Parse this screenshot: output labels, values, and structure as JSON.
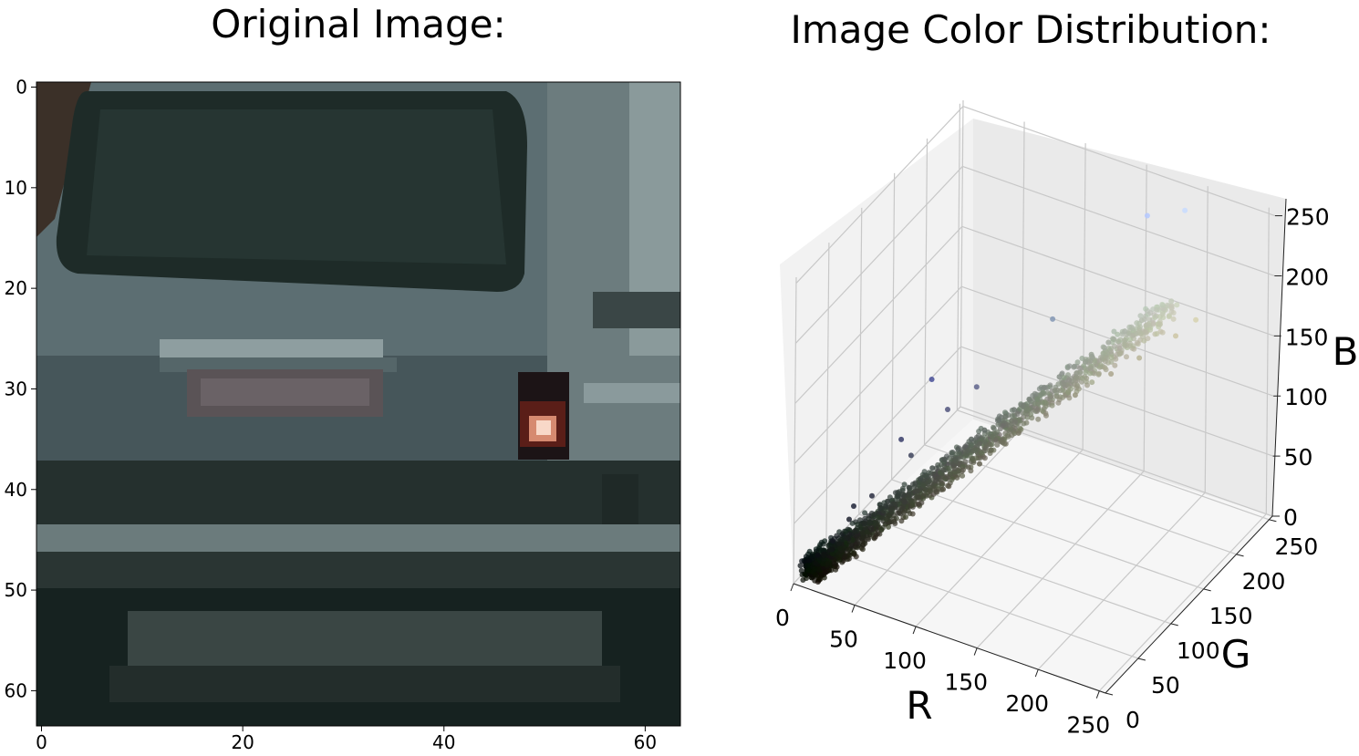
{
  "left_panel": {
    "title": "Original Image:",
    "image_description": "64x64 crop of the rear of a gray car: dark rear window, license plate area, red tail light on the right",
    "x_ticks": [
      "0",
      "20",
      "40",
      "60"
    ],
    "y_ticks": [
      "0",
      "10",
      "20",
      "30",
      "40",
      "50",
      "60"
    ]
  },
  "right_panel": {
    "title": "Image Color Distribution:"
  },
  "chart_data": [
    {
      "type": "image",
      "title": "Original Image:",
      "xlim": [
        0,
        64
      ],
      "ylim": [
        64,
        0
      ],
      "x_ticks": [
        0,
        20,
        40,
        60
      ],
      "y_ticks": [
        0,
        10,
        20,
        30,
        40,
        50,
        60
      ]
    },
    {
      "type": "scatter",
      "projection": "3d",
      "title": "Image Color Distribution:",
      "xlabel": "R",
      "ylabel": "G",
      "zlabel": "B",
      "xlim": [
        0,
        255
      ],
      "ylim": [
        0,
        255
      ],
      "zlim": [
        0,
        255
      ],
      "x_ticks": [
        "0",
        "50",
        "100",
        "150",
        "200",
        "250"
      ],
      "y_ticks": [
        "0",
        "50",
        "100",
        "150",
        "200",
        "250"
      ],
      "z_ticks": [
        "0",
        "50",
        "100",
        "150",
        "200",
        "250"
      ],
      "grid": true,
      "point_color": "pixel RGB value",
      "points": [
        {
          "r": 10,
          "g": 15,
          "b": 12
        },
        {
          "r": 14,
          "g": 20,
          "b": 17
        },
        {
          "r": 18,
          "g": 24,
          "b": 21
        },
        {
          "r": 22,
          "g": 28,
          "b": 25
        },
        {
          "r": 26,
          "g": 32,
          "b": 29
        },
        {
          "r": 30,
          "g": 37,
          "b": 33
        },
        {
          "r": 35,
          "g": 42,
          "b": 38
        },
        {
          "r": 40,
          "g": 48,
          "b": 44
        },
        {
          "r": 46,
          "g": 54,
          "b": 50
        },
        {
          "r": 52,
          "g": 61,
          "b": 56
        },
        {
          "r": 58,
          "g": 67,
          "b": 62
        },
        {
          "r": 64,
          "g": 73,
          "b": 68
        },
        {
          "r": 70,
          "g": 80,
          "b": 75
        },
        {
          "r": 77,
          "g": 86,
          "b": 81
        },
        {
          "r": 84,
          "g": 93,
          "b": 88
        },
        {
          "r": 91,
          "g": 100,
          "b": 95
        },
        {
          "r": 98,
          "g": 107,
          "b": 101
        },
        {
          "r": 106,
          "g": 114,
          "b": 108
        },
        {
          "r": 114,
          "g": 122,
          "b": 115
        },
        {
          "r": 122,
          "g": 130,
          "b": 122
        },
        {
          "r": 130,
          "g": 138,
          "b": 130
        },
        {
          "r": 138,
          "g": 146,
          "b": 137
        },
        {
          "r": 146,
          "g": 154,
          "b": 144
        },
        {
          "r": 155,
          "g": 163,
          "b": 152
        },
        {
          "r": 164,
          "g": 172,
          "b": 160
        },
        {
          "r": 173,
          "g": 180,
          "b": 168
        },
        {
          "r": 182,
          "g": 189,
          "b": 175
        },
        {
          "r": 190,
          "g": 197,
          "b": 182
        },
        {
          "r": 198,
          "g": 204,
          "b": 188
        },
        {
          "r": 12,
          "g": 14,
          "b": 20
        },
        {
          "r": 20,
          "g": 22,
          "b": 30
        },
        {
          "r": 28,
          "g": 32,
          "b": 45
        },
        {
          "r": 40,
          "g": 44,
          "b": 62
        },
        {
          "r": 30,
          "g": 35,
          "b": 55
        },
        {
          "r": 60,
          "g": 66,
          "b": 90
        },
        {
          "r": 55,
          "g": 60,
          "b": 105
        },
        {
          "r": 80,
          "g": 84,
          "b": 125
        },
        {
          "r": 95,
          "g": 100,
          "b": 140
        },
        {
          "r": 70,
          "g": 78,
          "b": 150
        },
        {
          "r": 130,
          "g": 150,
          "b": 180
        },
        {
          "r": 180,
          "g": 200,
          "b": 255
        },
        {
          "r": 200,
          "g": 220,
          "b": 255
        },
        {
          "r": 120,
          "g": 118,
          "b": 100
        },
        {
          "r": 150,
          "g": 148,
          "b": 125
        },
        {
          "r": 170,
          "g": 165,
          "b": 140
        },
        {
          "r": 185,
          "g": 180,
          "b": 150
        },
        {
          "r": 205,
          "g": 198,
          "b": 165
        },
        {
          "r": 215,
          "g": 210,
          "b": 175
        },
        {
          "r": 100,
          "g": 96,
          "b": 80
        },
        {
          "r": 80,
          "g": 78,
          "b": 62
        }
      ]
    }
  ]
}
